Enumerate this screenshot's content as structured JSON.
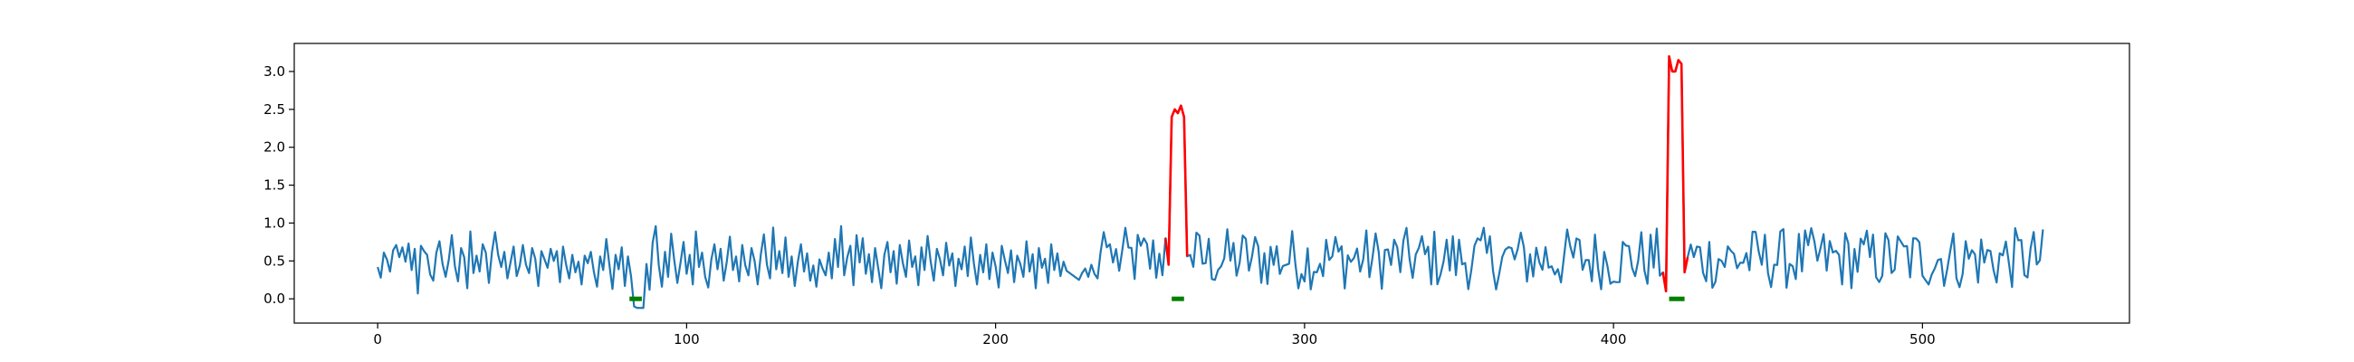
{
  "chart_data": {
    "type": "line",
    "title": "",
    "xlabel": "",
    "ylabel": "",
    "xlim": [
      -27,
      567
    ],
    "ylim": [
      -0.32,
      3.37
    ],
    "grid": false,
    "legend": "none",
    "x_ticks": [
      0,
      100,
      200,
      300,
      400,
      500
    ],
    "x_tick_labels": [
      "0",
      "100",
      "200",
      "300",
      "400",
      "500"
    ],
    "y_ticks": [
      0.0,
      0.5,
      1.0,
      1.5,
      2.0,
      2.5,
      3.0
    ],
    "y_tick_labels": [
      "0.0",
      "0.5",
      "1.0",
      "1.5",
      "2.0",
      "2.5",
      "3.0"
    ],
    "series_colors": {
      "signal": "#1f77b4",
      "spike": "#ff0000",
      "marker": "#008000"
    },
    "x_range": [
      0,
      539
    ],
    "series": [
      {
        "role": "signal",
        "values": [
          0.42,
          0.28,
          0.61,
          0.52,
          0.36,
          0.64,
          0.71,
          0.55,
          0.68,
          0.49,
          0.73,
          0.38,
          0.66,
          0.07,
          0.7,
          0.63,
          0.58,
          0.32,
          0.24,
          0.61,
          0.76,
          0.46,
          0.29,
          0.51,
          0.84,
          0.43,
          0.23,
          0.67,
          0.55,
          0.14,
          0.89,
          0.34,
          0.57,
          0.36,
          0.72,
          0.61,
          0.21,
          0.62,
          0.88,
          0.58,
          0.42,
          0.62,
          0.27,
          0.48,
          0.69,
          0.3,
          0.44,
          0.71,
          0.45,
          0.34,
          0.67,
          0.53,
          0.17,
          0.63,
          0.52,
          0.41,
          0.66,
          0.5,
          0.63,
          0.22,
          0.69,
          0.45,
          0.27,
          0.58,
          0.35,
          0.49,
          0.19,
          0.57,
          0.47,
          0.62,
          0.35,
          0.16,
          0.56,
          0.38,
          0.79,
          0.45,
          0.13,
          0.58,
          0.39,
          0.68,
          0.17,
          0.56,
          0.3,
          -0.1,
          -0.12,
          -0.12,
          -0.12,
          0.46,
          0.12,
          0.74,
          0.96,
          0.44,
          0.16,
          0.62,
          0.29,
          0.86,
          0.51,
          0.21,
          0.47,
          0.75,
          0.33,
          0.58,
          0.19,
          0.89,
          0.42,
          0.61,
          0.29,
          0.15,
          0.52,
          0.72,
          0.39,
          0.66,
          0.24,
          0.49,
          0.82,
          0.38,
          0.56,
          0.23,
          0.71,
          0.44,
          0.31,
          0.67,
          0.5,
          0.19,
          0.58,
          0.85,
          0.45,
          0.27,
          0.94,
          0.39,
          0.63,
          0.34,
          0.81,
          0.29,
          0.56,
          0.17,
          0.49,
          0.72,
          0.36,
          0.6,
          0.24,
          0.44,
          0.16,
          0.52,
          0.4,
          0.31,
          0.61,
          0.27,
          0.79,
          0.42,
          0.96,
          0.31,
          0.55,
          0.7,
          0.18,
          0.84,
          0.48,
          0.8,
          0.33,
          0.59,
          0.22,
          0.67,
          0.41,
          0.14,
          0.58,
          0.75,
          0.35,
          0.63,
          0.2,
          0.71,
          0.47,
          0.29,
          0.77,
          0.42,
          0.56,
          0.18,
          0.68,
          0.38,
          0.83,
          0.49,
          0.24,
          0.66,
          0.52,
          0.31,
          0.74,
          0.44,
          0.6,
          0.17,
          0.53,
          0.39,
          0.69,
          0.3,
          0.81,
          0.46,
          0.19,
          0.58,
          0.35,
          0.72,
          0.26,
          0.61,
          0.43,
          0.15,
          0.7,
          0.51,
          0.34,
          0.64,
          0.22,
          0.57,
          0.46,
          0.29,
          0.76,
          0.36,
          0.59,
          0.14,
          0.67,
          0.41,
          0.53,
          0.21,
          0.72,
          0.38,
          0.6,
          0.3,
          0.49,
          0.37,
          0.34,
          0.31,
          0.28,
          0.25,
          0.34,
          0.4,
          0.29,
          0.45,
          0.33,
          0.27,
          0.62,
          0.88,
          0.68,
          0.72,
          0.48
        ],
        "_note_values": "x = 0..250 sampled one per x unit"
      }
    ]
  }
}
